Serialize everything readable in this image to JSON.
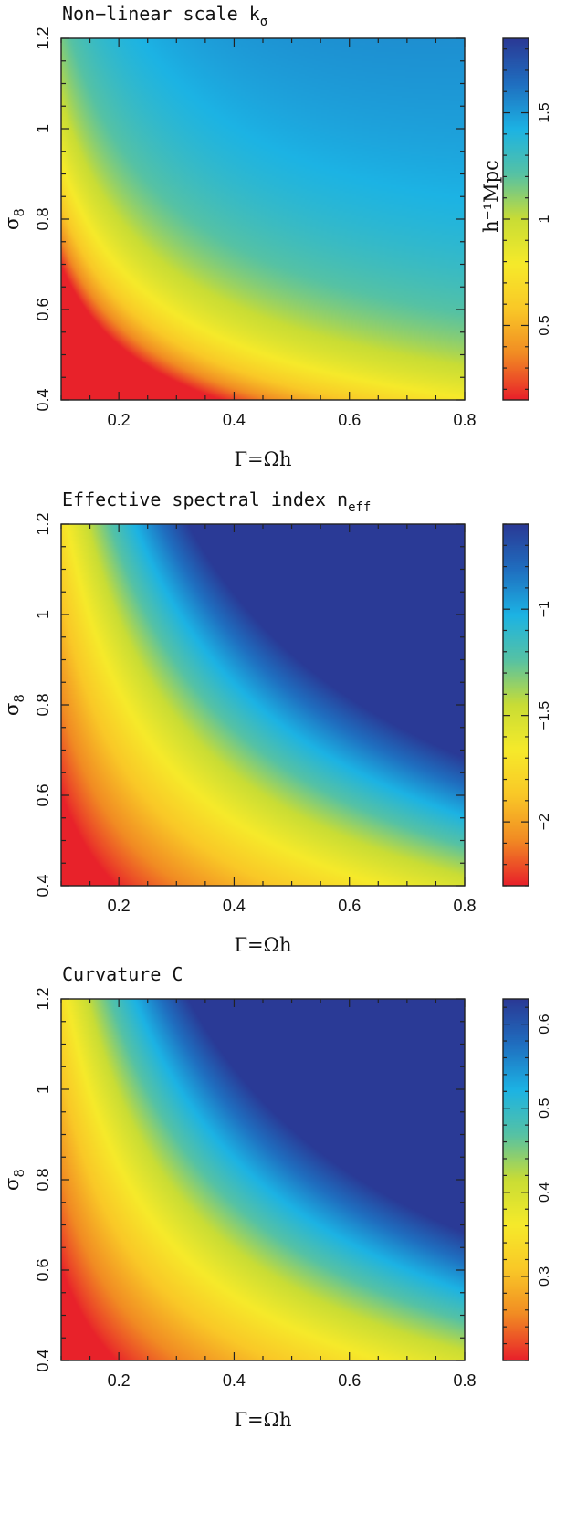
{
  "chart_data": [
    {
      "type": "heatmap",
      "title_parts": {
        "main": "Non−linear scale k",
        "sub": "σ"
      },
      "xlabel": "Γ=Ωh",
      "ylabel_parts": {
        "main": "σ",
        "sub": "8"
      },
      "xlim": [
        0.1,
        0.8
      ],
      "ylim": [
        0.4,
        1.2
      ],
      "xticks": [
        0.2,
        0.4,
        0.6,
        0.8
      ],
      "xtick_labels": [
        "0.2",
        "0.4",
        "0.6",
        "0.8"
      ],
      "yticks": [
        0.4,
        0.6,
        0.8,
        1.0,
        1.2
      ],
      "ytick_labels": [
        "0.4",
        "0.6",
        "0.8",
        "1",
        "1.2"
      ],
      "colorbar": {
        "range": [
          0.15,
          1.85
        ],
        "ticks": [
          0.5,
          1.0,
          1.5
        ],
        "tick_labels": [
          "0.5",
          "1",
          "1.5"
        ],
        "label": "h⁻¹Mpc",
        "reversed_palette": false
      },
      "value_model": "power",
      "model_params": {
        "a": 0.33,
        "b": 0.75,
        "p": 1.75,
        "extra": 0.0
      },
      "colormap": [
        "#e8222a",
        "#f18b23",
        "#f9c827",
        "#f6ea2a",
        "#c9dd35",
        "#56c2a4",
        "#1cb3e4",
        "#1f6fc0",
        "#2a3a96"
      ]
    },
    {
      "type": "heatmap",
      "title_parts": {
        "main": "Effective spectral index n",
        "sub": "eff"
      },
      "xlabel": "Γ=Ωh",
      "ylabel_parts": {
        "main": "σ",
        "sub": "8"
      },
      "xlim": [
        0.1,
        0.8
      ],
      "ylim": [
        0.4,
        1.2
      ],
      "xticks": [
        0.2,
        0.4,
        0.6,
        0.8
      ],
      "xtick_labels": [
        "0.2",
        "0.4",
        "0.6",
        "0.8"
      ],
      "yticks": [
        0.4,
        0.6,
        0.8,
        1.0,
        1.2
      ],
      "ytick_labels": [
        "0.4",
        "0.6",
        "0.8",
        "1",
        "1.2"
      ],
      "colorbar": {
        "range": [
          -2.3,
          -0.6
        ],
        "ticks": [
          -2.0,
          -1.5,
          -1.0
        ],
        "tick_labels": [
          "−2",
          "−1.5",
          "−1"
        ],
        "label": "",
        "reversed_palette": false
      },
      "value_model": "hyperbolic",
      "model_params": {
        "vmin": -2.3,
        "vmax": -0.6,
        "scale": 1.45,
        "pg": 0.8,
        "ps": 1.3
      },
      "colormap": [
        "#e8222a",
        "#f18b23",
        "#f9c827",
        "#f6ea2a",
        "#c9dd35",
        "#56c2a4",
        "#1cb3e4",
        "#1f6fc0",
        "#2a3a96"
      ]
    },
    {
      "type": "heatmap",
      "title_parts": {
        "main": "Curvature C",
        "sub": ""
      },
      "xlabel": "Γ=Ωh",
      "ylabel_parts": {
        "main": "σ",
        "sub": "8"
      },
      "xlim": [
        0.1,
        0.8
      ],
      "ylim": [
        0.4,
        1.2
      ],
      "xticks": [
        0.2,
        0.4,
        0.6,
        0.8
      ],
      "xtick_labels": [
        "0.2",
        "0.4",
        "0.6",
        "0.8"
      ],
      "yticks": [
        0.4,
        0.6,
        0.8,
        1.0,
        1.2
      ],
      "ytick_labels": [
        "0.4",
        "0.6",
        "0.8",
        "1",
        "1.2"
      ],
      "colorbar": {
        "range": [
          0.2,
          0.63
        ],
        "ticks": [
          0.3,
          0.4,
          0.5,
          0.6
        ],
        "tick_labels": [
          "0.3",
          "0.4",
          "0.5",
          "0.6"
        ],
        "label": "",
        "reversed_palette": false
      },
      "value_model": "hyperbolic",
      "model_params": {
        "vmin": 0.2,
        "vmax": 0.63,
        "scale": 1.45,
        "pg": 0.8,
        "ps": 1.3
      },
      "colormap": [
        "#e8222a",
        "#f18b23",
        "#f9c827",
        "#f6ea2a",
        "#c9dd35",
        "#56c2a4",
        "#1cb3e4",
        "#1f6fc0",
        "#2a3a96"
      ]
    }
  ]
}
